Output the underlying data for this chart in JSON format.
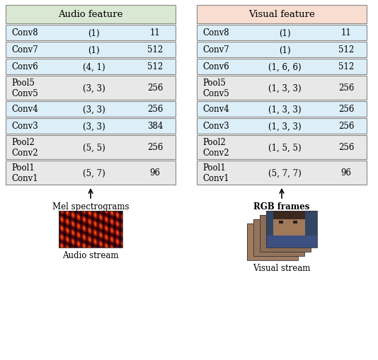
{
  "audio_title": "Audio feature",
  "visual_title": "Visual feature",
  "audio_header_color": "#d9e8d2",
  "visual_header_color": "#f8ddd0",
  "single_row_color": "#dceef8",
  "double_row_color": "#e8e8e8",
  "border_color": "#888888",
  "audio_rows": [
    {
      "label": "Conv8",
      "kernel": "(1)",
      "filters": "11",
      "double": false
    },
    {
      "label": "Conv7",
      "kernel": "(1)",
      "filters": "512",
      "double": false
    },
    {
      "label": "Conv6",
      "kernel": "(4, 1)",
      "filters": "512",
      "double": false
    },
    {
      "label": "Pool5\nConv5",
      "kernel": "(3, 3)",
      "filters": "256",
      "double": true
    },
    {
      "label": "Conv4",
      "kernel": "(3, 3)",
      "filters": "256",
      "double": false
    },
    {
      "label": "Conv3",
      "kernel": "(3, 3)",
      "filters": "384",
      "double": false
    },
    {
      "label": "Pool2\nConv2",
      "kernel": "(5, 5)",
      "filters": "256",
      "double": true
    },
    {
      "label": "Pool1\nConv1",
      "kernel": "(5, 7)",
      "filters": "96",
      "double": true
    }
  ],
  "visual_rows": [
    {
      "label": "Conv8",
      "kernel": "(1)",
      "filters": "11",
      "double": false
    },
    {
      "label": "Conv7",
      "kernel": "(1)",
      "filters": "512",
      "double": false
    },
    {
      "label": "Conv6",
      "kernel": "(1, 6, 6)",
      "filters": "512",
      "double": false
    },
    {
      "label": "Pool5\nConv5",
      "kernel": "(1, 3, 3)",
      "filters": "256",
      "double": true
    },
    {
      "label": "Conv4",
      "kernel": "(1, 3, 3)",
      "filters": "256",
      "double": false
    },
    {
      "label": "Conv3",
      "kernel": "(1, 3, 3)",
      "filters": "256",
      "double": false
    },
    {
      "label": "Pool2\nConv2",
      "kernel": "(1, 5, 5)",
      "filters": "256",
      "double": true
    },
    {
      "label": "Pool1\nConv1",
      "kernel": "(5, 7, 7)",
      "filters": "96",
      "double": true
    }
  ],
  "audio_stream_label": "Mel spectrograms",
  "audio_stream_sublabel": "Audio stream",
  "visual_stream_label": "RGB frames",
  "visual_stream_sublabel": "Visual stream",
  "font_size": 8.5,
  "title_font_size": 9.5
}
